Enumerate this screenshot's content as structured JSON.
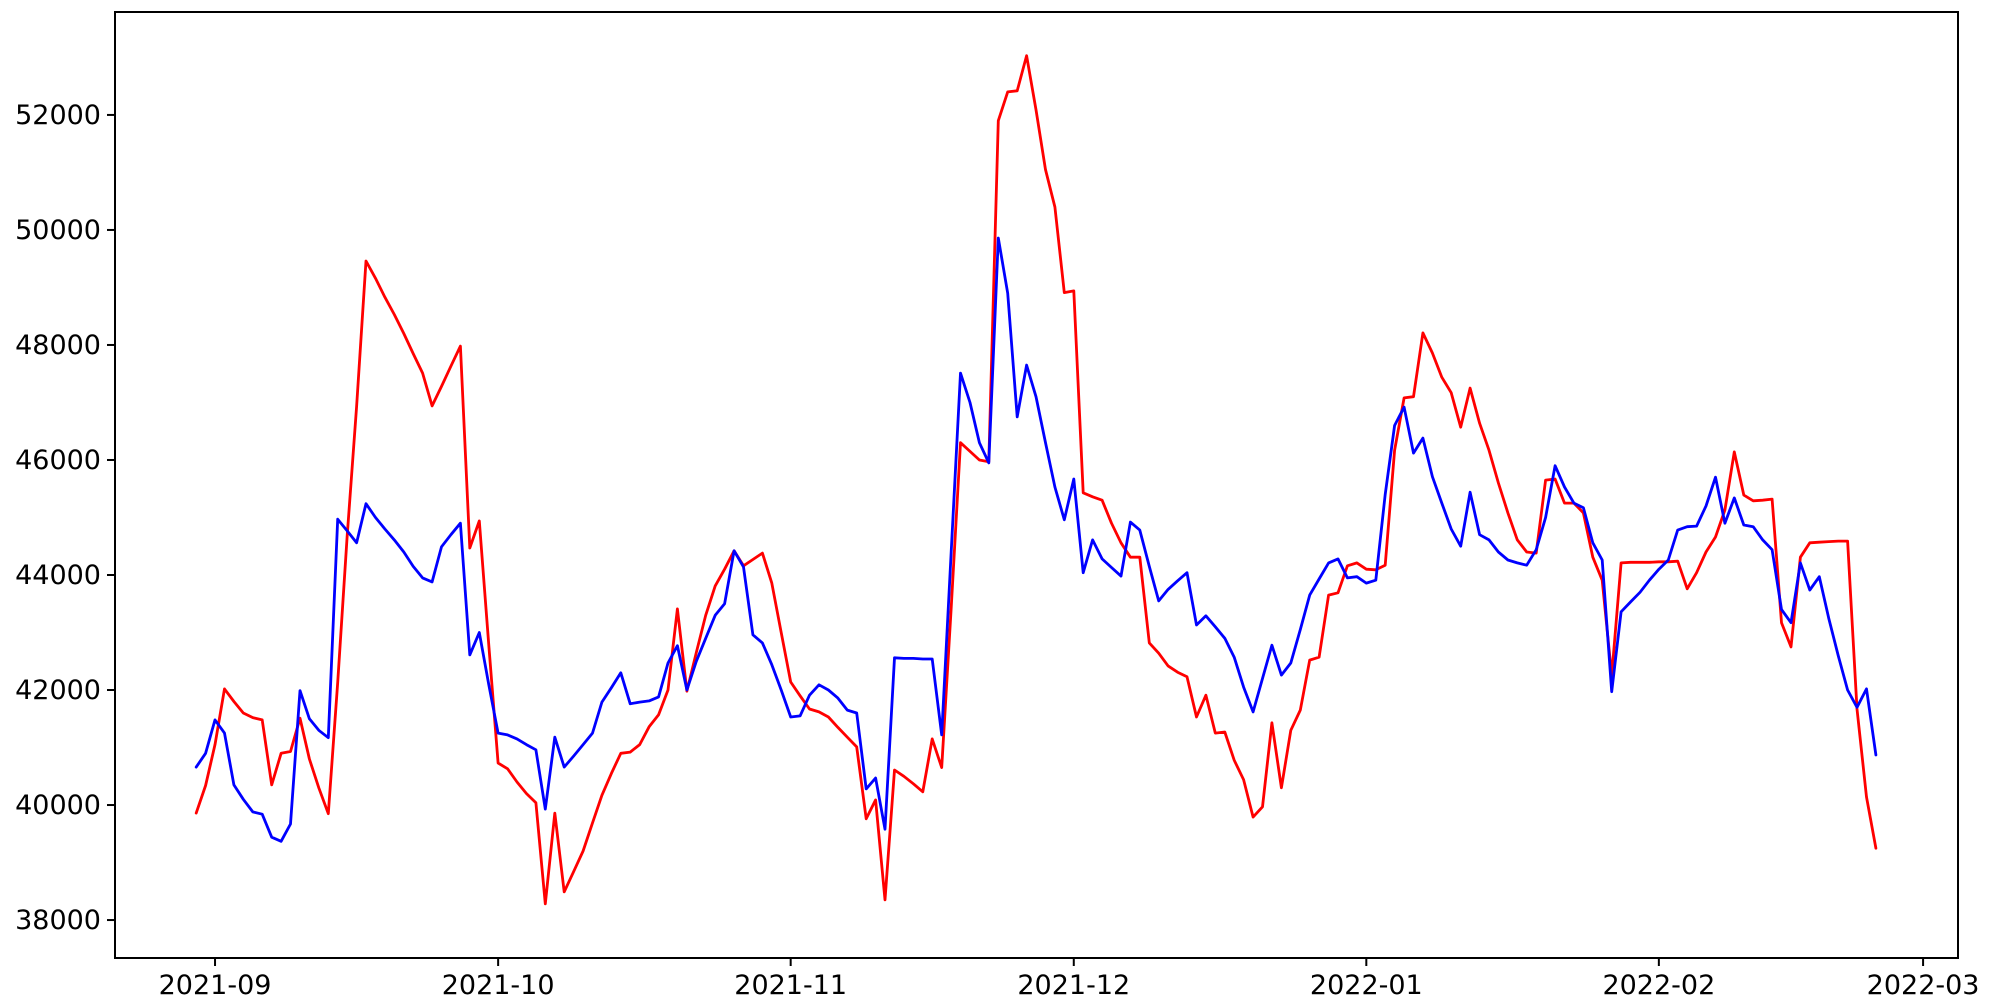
{
  "figure": {
    "background": "#ffffff",
    "plot_background": "#ffffff",
    "spine_color": "#000000",
    "tick_color": "#000000",
    "tick_label_color": "#000000"
  },
  "chart_data": {
    "type": "line",
    "title": "",
    "xlabel": "",
    "ylabel": "",
    "grid": false,
    "legend_position": "none",
    "x_unit": "days",
    "x_start_label": "2021-08-30",
    "x_points_step_days": 1,
    "xlim_days": [
      -8.6,
      186.7
    ],
    "ylim": [
      37340,
      53790
    ],
    "x_tick_days": [
      2,
      32,
      63,
      93,
      124,
      155,
      183
    ],
    "x_tick_labels": [
      "2021-09",
      "2021-10",
      "2021-11",
      "2021-12",
      "2022-01",
      "2022-02",
      "2022-03"
    ],
    "y_ticks": [
      38000,
      40000,
      42000,
      44000,
      46000,
      48000,
      50000,
      52000
    ],
    "y_tick_labels": [
      "38000",
      "40000",
      "42000",
      "44000",
      "46000",
      "48000",
      "50000",
      "52000"
    ],
    "series": [
      {
        "name": "series-red",
        "color": "#ff0000",
        "line_width": 2.8,
        "values": [
          39860,
          40340,
          41050,
          42020,
          41800,
          41600,
          41520,
          41480,
          40350,
          40900,
          40930,
          41510,
          40800,
          40300,
          39850,
          42130,
          44660,
          46930,
          49460,
          49160,
          48830,
          48530,
          48200,
          47850,
          47510,
          46940,
          47280,
          47630,
          47980,
          44470,
          44940,
          42800,
          40730,
          40630,
          40400,
          40200,
          40040,
          38280,
          39860,
          38490,
          38840,
          39200,
          39690,
          40170,
          40550,
          40900,
          40920,
          41050,
          41360,
          41570,
          42000,
          43410,
          41980,
          42650,
          43300,
          43810,
          44100,
          44420,
          44160,
          44270,
          44380,
          43860,
          43000,
          42140,
          41900,
          41670,
          41620,
          41530,
          41350,
          41180,
          41010,
          39760,
          40090,
          38350,
          40610,
          40500,
          40370,
          40230,
          41150,
          40650,
          43400,
          46300,
          46150,
          46000,
          45970,
          51900,
          52400,
          52420,
          53030,
          52090,
          51050,
          50400,
          48910,
          48940,
          45430,
          45360,
          45300,
          44900,
          44560,
          44310,
          44310,
          42820,
          42640,
          42420,
          42310,
          42230,
          41530,
          41910,
          41250,
          41270,
          40780,
          40440,
          39790,
          39970,
          41430,
          40300,
          41300,
          41650,
          42520,
          42570,
          43650,
          43690,
          44160,
          44210,
          44100,
          44090,
          44170,
          46170,
          47080,
          47100,
          48210,
          47860,
          47440,
          47170,
          46570,
          47250,
          46640,
          46170,
          45600,
          45080,
          44610,
          44400,
          44380,
          45650,
          45670,
          45250,
          45250,
          45080,
          44310,
          43910,
          42250,
          44210,
          44220,
          44220,
          44220,
          44230,
          44230,
          44240,
          43760,
          44040,
          44400,
          44660,
          45130,
          46140,
          45390,
          45290,
          45300,
          45320,
          43170,
          42750,
          44310,
          44560,
          44570,
          44580,
          44590,
          44590,
          41670,
          40140,
          39250
        ]
      },
      {
        "name": "series-blue",
        "color": "#0000ff",
        "line_width": 2.8,
        "values": [
          40660,
          40900,
          41480,
          41250,
          40350,
          40100,
          39880,
          39840,
          39440,
          39370,
          39670,
          41990,
          41500,
          41300,
          41170,
          44970,
          44770,
          44560,
          45240,
          45000,
          44800,
          44610,
          44400,
          44150,
          43950,
          43880,
          44490,
          44700,
          44900,
          42610,
          43000,
          42100,
          41250,
          41220,
          41150,
          41050,
          40960,
          39930,
          41180,
          40660,
          40850,
          41050,
          41250,
          41790,
          42040,
          42300,
          41760,
          41790,
          41810,
          41880,
          42470,
          42770,
          42000,
          42500,
          42900,
          43300,
          43500,
          44420,
          44140,
          42960,
          42820,
          42440,
          42000,
          41530,
          41550,
          41910,
          42090,
          42000,
          41860,
          41650,
          41600,
          40280,
          40470,
          39580,
          42560,
          42550,
          42550,
          42540,
          42540,
          41220,
          44370,
          47510,
          47000,
          46300,
          45950,
          49860,
          48900,
          46750,
          47650,
          47100,
          46300,
          45530,
          44960,
          45670,
          44040,
          44610,
          44280,
          44130,
          43980,
          44920,
          44780,
          44150,
          43550,
          43750,
          43900,
          44040,
          43130,
          43290,
          43100,
          42900,
          42570,
          42050,
          41620,
          42200,
          42780,
          42260,
          42470,
          43050,
          43650,
          43930,
          44210,
          44280,
          43950,
          43970,
          43860,
          43910,
          45400,
          46600,
          46920,
          46120,
          46380,
          45710,
          45250,
          44800,
          44500,
          45440,
          44700,
          44610,
          44400,
          44260,
          44210,
          44170,
          44440,
          45000,
          45900,
          45530,
          45250,
          45170,
          44560,
          44260,
          41970,
          43360,
          43530,
          43700,
          43910,
          44100,
          44260,
          44780,
          44840,
          44850,
          45200,
          45700,
          44900,
          45340,
          44870,
          44840,
          44610,
          44440,
          43400,
          43170,
          44210,
          43740,
          43970,
          43250,
          42600,
          42000,
          41700,
          42020,
          40870
        ]
      }
    ]
  }
}
